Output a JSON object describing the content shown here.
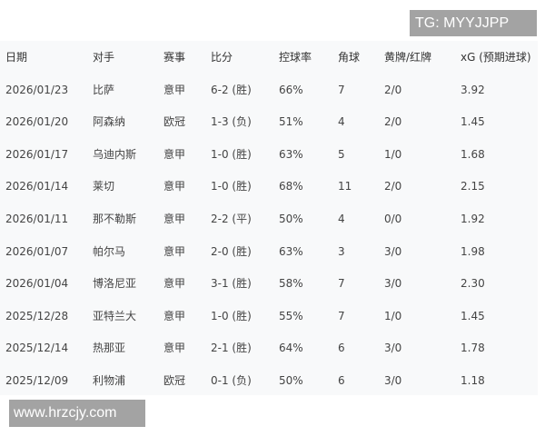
{
  "watermark_top": "TG: MYYJJPP",
  "watermark_bottom": "www.hrzcjy.com",
  "headers": [
    "日期",
    "对手",
    "赛事",
    "比分",
    "控球率",
    "角球",
    "黄牌/红牌",
    "xG (预期进球)"
  ],
  "rows": [
    [
      "2026/01/23",
      "比萨",
      "意甲",
      "6-2 (胜)",
      "66%",
      "7",
      "2/0",
      "3.92"
    ],
    [
      "2026/01/20",
      "阿森纳",
      "欧冠",
      "1-3 (负)",
      "51%",
      "4",
      "2/0",
      "1.45"
    ],
    [
      "2026/01/17",
      "乌迪内斯",
      "意甲",
      "1-0 (胜)",
      "63%",
      "5",
      "1/0",
      "1.68"
    ],
    [
      "2026/01/14",
      "莱切",
      "意甲",
      "1-0 (胜)",
      "68%",
      "11",
      "2/0",
      "2.15"
    ],
    [
      "2026/01/11",
      "那不勒斯",
      "意甲",
      "2-2 (平)",
      "50%",
      "4",
      "0/0",
      "1.92"
    ],
    [
      "2026/01/07",
      "帕尔马",
      "意甲",
      "2-0 (胜)",
      "63%",
      "3",
      "3/0",
      "1.98"
    ],
    [
      "2026/01/04",
      "博洛尼亚",
      "意甲",
      "3-1 (胜)",
      "58%",
      "7",
      "3/0",
      "2.30"
    ],
    [
      "2025/12/28",
      "亚特兰大",
      "意甲",
      "1-0 (胜)",
      "55%",
      "7",
      "1/0",
      "1.45"
    ],
    [
      "2025/12/14",
      "热那亚",
      "意甲",
      "2-1 (胜)",
      "64%",
      "6",
      "3/0",
      "1.78"
    ],
    [
      "2025/12/09",
      "利物浦",
      "欧冠",
      "0-1 (负)",
      "50%",
      "6",
      "3/0",
      "1.18"
    ]
  ]
}
